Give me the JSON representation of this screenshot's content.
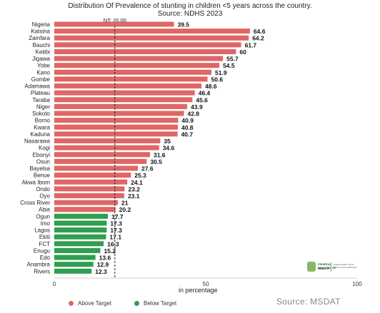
{
  "chart_data": {
    "type": "bar",
    "orientation": "horizontal",
    "title": "Distribution Of Prevalence of stunting in children <5 years across the country.",
    "subtitle": "Source: NDHS 2023",
    "xlabel": "in percentage",
    "xlim": [
      0,
      100
    ],
    "x_ticks": [
      "0",
      "50",
      "100"
    ],
    "target_label": "NT: 20.00",
    "target_value": 20,
    "categories": [
      "Nigeria",
      "Katsina",
      "Zamfara",
      "Bauchi",
      "Kebbi",
      "Jigawa",
      "Yobe",
      "Kano",
      "Gombe",
      "Adamawa",
      "Plateau",
      "Taraba",
      "Niger",
      "Sokoto",
      "Borno",
      "Kwara",
      "Kaduna",
      "Nasarawa",
      "Kogi",
      "Ebonyi",
      "Osun",
      "Bayelsa",
      "Benue",
      "Akwa Ibom",
      "Ondo",
      "Oyo",
      "Cross River",
      "Abia",
      "Ogun",
      "Imo",
      "Lagos",
      "Ekiti",
      "FCT",
      "Enugu",
      "Edo",
      "Anambra",
      "Rivers"
    ],
    "values": [
      39.5,
      64.6,
      64.2,
      61.7,
      60,
      55.7,
      54.5,
      51.9,
      50.6,
      48.6,
      46.4,
      45.6,
      43.9,
      42.8,
      40.9,
      40.8,
      40.7,
      35,
      34.6,
      31.6,
      30.5,
      27.6,
      25.3,
      24.1,
      23.2,
      23.1,
      21,
      20.2,
      17.7,
      17.3,
      17.3,
      17.1,
      16.3,
      15.2,
      13.6,
      12.9,
      12.3
    ],
    "value_labels": [
      "39.5",
      "64.6",
      "64.2",
      "61.7",
      "60",
      "55.7",
      "54.5",
      "51.9",
      "50.6",
      "48.6",
      "46.4",
      "45.6",
      "43.9",
      "42.8",
      "40.9",
      "40.8",
      "40.7",
      "35",
      "34.6",
      "31.6",
      "30.5",
      "27.6",
      "25.3",
      "24.1",
      "23.2",
      "23.1",
      "21",
      "20.2",
      "17.7",
      "17.3",
      "17.3",
      "17.1",
      "16.3",
      "15.2",
      "13.6",
      "12.9",
      "12.3"
    ],
    "groups": [
      "above",
      "above",
      "above",
      "above",
      "above",
      "above",
      "above",
      "above",
      "above",
      "above",
      "above",
      "above",
      "above",
      "above",
      "above",
      "above",
      "above",
      "above",
      "above",
      "above",
      "above",
      "above",
      "above",
      "above",
      "above",
      "above",
      "above",
      "above",
      "below",
      "below",
      "below",
      "below",
      "below",
      "below",
      "below",
      "below",
      "below"
    ],
    "legend": [
      {
        "name": "Above Target",
        "color": "#e06666"
      },
      {
        "name": "Below Target",
        "color": "#2e9e4f"
      }
    ],
    "legend_position": "bottom-left",
    "grid": false
  },
  "source_text": "Source: MSDAT",
  "logo": {
    "org": "FEDERAL MINISTRY OF",
    "name": "HEALTH",
    "fine_print": "Nigeria Health Sector Performance Dashboard"
  }
}
